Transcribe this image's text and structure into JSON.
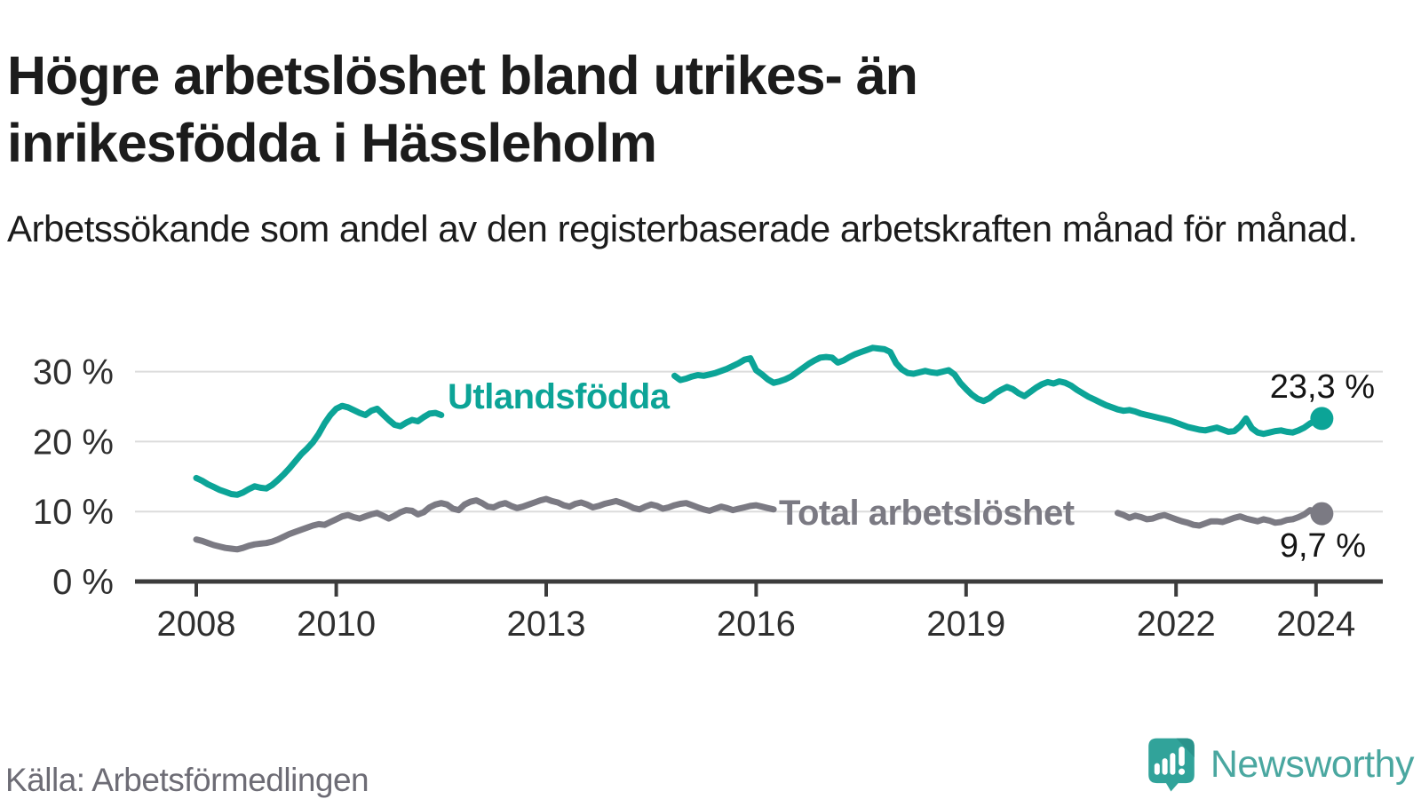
{
  "title": {
    "lines": [
      "Högre arbetslöshet bland utrikes- än",
      "inrikesfödda i Hässleholm"
    ]
  },
  "subtitle": "Arbetssökande som andel av den registerbaserade arbetskraften månad för månad.",
  "source": "Källa: Arbetsförmedlingen",
  "logo": {
    "text": "Newsworthy",
    "icon": "newsworthy-speech-bubble-chart-icon",
    "icon_color": "#31a39a",
    "icon_fold_color": "#2a938c",
    "text_color": "#4aa7a0"
  },
  "theme": {
    "teal": "#0ca497",
    "gray": "#7b7a83",
    "title_color": "#1c1c1c",
    "axis_text": "#2f2f2f",
    "gridline": "#dcdcdc",
    "axis_line": "#3c3c3c",
    "source_color": "#6d6c75",
    "background": "#ffffff"
  },
  "chart_data": {
    "type": "line",
    "unit": "%",
    "x_axis": {
      "tick_years": [
        2008,
        2010,
        2013,
        2016,
        2019,
        2022,
        2024
      ],
      "start": 2007.9,
      "end": 2024.25
    },
    "y_axis": {
      "ticks": [
        0,
        10,
        20,
        30
      ],
      "tick_suffix": " %",
      "max": 33.5,
      "grid": true
    },
    "series": [
      {
        "name": "Utlandsfödda",
        "color_key": "teal",
        "end_label": "23,3 %",
        "end_dot": {
          "year": 2024.0833,
          "value": 23.3
        },
        "segments": [
          {
            "start_year": 2008.0,
            "step_months": 1,
            "values": [
              14.8,
              14.4,
              13.9,
              13.5,
              13.1,
              12.8,
              12.5,
              12.4,
              12.7,
              13.2,
              13.6,
              13.4,
              13.3,
              13.8,
              14.5,
              15.3,
              16.2,
              17.2,
              18.2,
              19.0,
              19.9,
              21.1,
              22.6,
              23.8,
              24.7,
              25.1,
              24.9,
              24.5,
              24.1,
              23.8,
              24.4,
              24.7,
              23.9,
              23.1,
              22.4,
              22.2,
              22.7,
              23.1,
              22.9,
              23.5,
              24.0,
              24.1,
              23.8
            ]
          },
          {
            "start_year": 2014.8333,
            "step_months": 1,
            "values": [
              29.4,
              28.8,
              29.0,
              29.3,
              29.5,
              29.4,
              29.6,
              29.8,
              30.1,
              30.4,
              30.8,
              31.2,
              31.7,
              31.9,
              30.2,
              29.6,
              28.9,
              28.4,
              28.6,
              28.9,
              29.3,
              29.9,
              30.5,
              31.1,
              31.6,
              32.0,
              32.1,
              32.0,
              31.3,
              31.6,
              32.1,
              32.5,
              32.8,
              33.1,
              33.4,
              33.3,
              33.2,
              32.8,
              31.2,
              30.3,
              29.8,
              29.7,
              29.9,
              30.1,
              29.9,
              29.8,
              30.0,
              30.2,
              29.6,
              28.4,
              27.5,
              26.7,
              26.1,
              25.8,
              26.2,
              26.9,
              27.4,
              27.8,
              27.5,
              26.9,
              26.5,
              27.1,
              27.7,
              28.2,
              28.5,
              28.3,
              28.6,
              28.4,
              28.0,
              27.4,
              26.9,
              26.4,
              26.0,
              25.6,
              25.2,
              24.9,
              24.6,
              24.4,
              24.5,
              24.3,
              24.0,
              23.8,
              23.6,
              23.4,
              23.2,
              23.0,
              22.7,
              22.4,
              22.1,
              21.9,
              21.7,
              21.6,
              21.8,
              22.0,
              21.7,
              21.4,
              21.5,
              22.2,
              23.3,
              21.9,
              21.3,
              21.1,
              21.3,
              21.5,
              21.6,
              21.4,
              21.3,
              21.6,
              22.0,
              22.6,
              23.0,
              23.3
            ]
          }
        ]
      },
      {
        "name": "Total arbetslöshet",
        "color_key": "gray",
        "end_label": "9,7 %",
        "end_dot": {
          "year": 2024.0833,
          "value": 9.7
        },
        "segments": [
          {
            "start_year": 2008.0,
            "step_months": 1,
            "values": [
              6.0,
              5.8,
              5.5,
              5.2,
              5.0,
              4.8,
              4.7,
              4.6,
              4.8,
              5.1,
              5.3,
              5.4,
              5.5,
              5.7,
              6.0,
              6.4,
              6.8,
              7.1,
              7.4,
              7.7,
              8.0,
              8.2,
              8.1,
              8.5,
              8.9,
              9.3,
              9.5,
              9.2,
              9.0,
              9.3,
              9.6,
              9.8,
              9.4,
              9.0,
              9.4,
              9.9,
              10.2,
              10.1,
              9.6,
              9.9,
              10.6,
              11.0,
              11.2,
              11.0,
              10.4,
              10.2,
              11.0,
              11.4,
              11.6,
              11.2,
              10.7,
              10.6,
              11.0,
              11.2,
              10.8,
              10.5,
              10.7,
              11.0,
              11.3,
              11.6,
              11.8,
              11.5,
              11.3,
              10.9,
              10.7,
              11.1,
              11.3,
              11.0,
              10.6,
              10.8,
              11.1,
              11.3,
              11.5,
              11.2,
              10.9,
              10.5,
              10.3,
              10.7,
              11.0,
              10.8,
              10.4,
              10.6,
              10.9,
              11.1,
              11.2,
              10.9,
              10.6,
              10.3,
              10.1,
              10.4,
              10.7,
              10.5,
              10.2,
              10.4,
              10.6,
              10.8,
              10.9,
              10.7,
              10.5,
              10.3
            ]
          },
          {
            "start_year": 2021.1667,
            "step_months": 1,
            "values": [
              9.8,
              9.5,
              9.1,
              9.4,
              9.2,
              8.9,
              9.0,
              9.3,
              9.5,
              9.2,
              8.9,
              8.6,
              8.4,
              8.1,
              8.0,
              8.3,
              8.6,
              8.6,
              8.5,
              8.8,
              9.1,
              9.3,
              9.0,
              8.8,
              8.6,
              8.9,
              8.7,
              8.4,
              8.5,
              8.8,
              8.9,
              9.2,
              9.6,
              10.2,
              9.9,
              9.7
            ]
          }
        ]
      }
    ]
  }
}
